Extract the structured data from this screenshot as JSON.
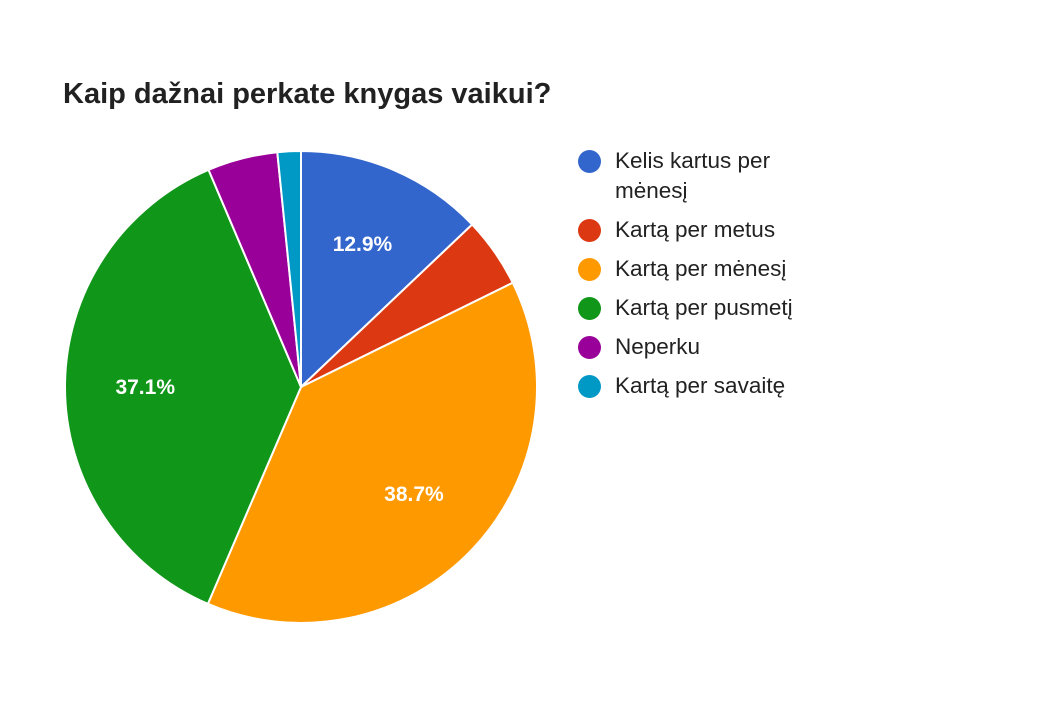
{
  "chart_data": {
    "type": "pie",
    "title": "Kaip dažnai perkate knygas vaikui?",
    "legend_position": "right",
    "slices": [
      {
        "label": "Kelis kartus per mėnesį",
        "value": 12.9,
        "color": "#3366cc",
        "data_label": "12.9%"
      },
      {
        "label": "Kartą per metus",
        "value": 4.8,
        "color": "#dc3912",
        "data_label": ""
      },
      {
        "label": "Kartą per mėnesį",
        "value": 38.7,
        "color": "#ff9900",
        "data_label": "38.7%"
      },
      {
        "label": "Kartą per pusmetį",
        "value": 37.1,
        "color": "#109618",
        "data_label": "37.1%"
      },
      {
        "label": "Neperku",
        "value": 4.8,
        "color": "#990099",
        "data_label": ""
      },
      {
        "label": "Kartą per savaitę",
        "value": 1.6,
        "color": "#0099c6",
        "data_label": ""
      }
    ]
  }
}
